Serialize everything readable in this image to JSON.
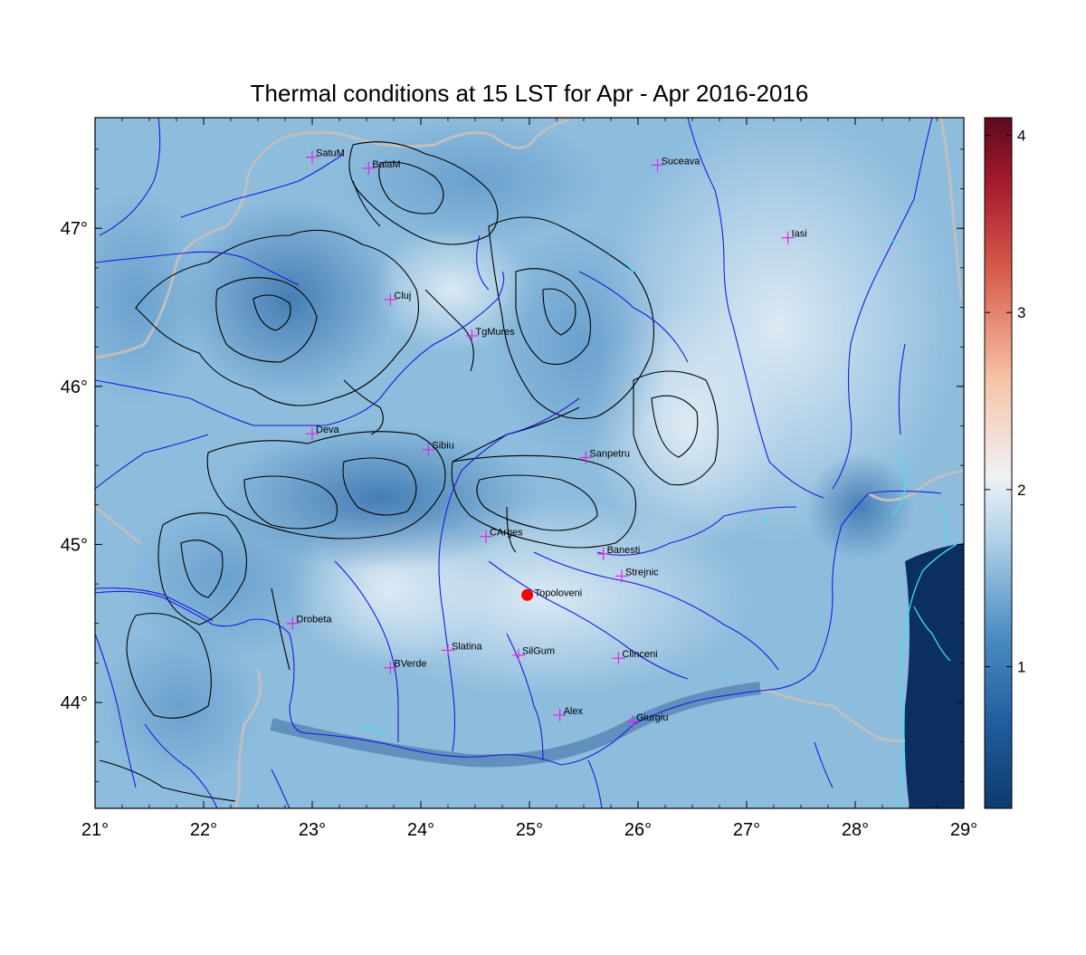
{
  "title": "Thermal conditions at 15 LST for Apr - Apr  2016-2016",
  "lon_ticks": [
    {
      "value": 21,
      "label": "21°"
    },
    {
      "value": 22,
      "label": "22°"
    },
    {
      "value": 23,
      "label": "23°"
    },
    {
      "value": 24,
      "label": "24°"
    },
    {
      "value": 25,
      "label": "25°"
    },
    {
      "value": 26,
      "label": "26°"
    },
    {
      "value": 27,
      "label": "27°"
    },
    {
      "value": 28,
      "label": "28°"
    },
    {
      "value": 29,
      "label": "29°"
    }
  ],
  "lat_ticks": [
    {
      "value": 44,
      "label": "44°"
    },
    {
      "value": 45,
      "label": "45°"
    },
    {
      "value": 46,
      "label": "46°"
    },
    {
      "value": 47,
      "label": "47°"
    }
  ],
  "lon_range": [
    21,
    29
  ],
  "lat_range": [
    43.33,
    47.7
  ],
  "colorbar": {
    "range": [
      0.2,
      4.1
    ],
    "ticks": [
      {
        "value": 1,
        "label": "1"
      },
      {
        "value": 2,
        "label": "2"
      },
      {
        "value": 3,
        "label": "3"
      },
      {
        "value": 4,
        "label": "4"
      }
    ],
    "colors": [
      "#0e3a6e",
      "#2f6fae",
      "#6ba7d2",
      "#b3d3e8",
      "#f2f4f6",
      "#f2b899",
      "#d25a4a",
      "#6a0d20"
    ]
  },
  "stations": [
    {
      "name": "SatuM",
      "lon": 23.0,
      "lat": 47.45
    },
    {
      "name": "BaiaM",
      "lon": 23.52,
      "lat": 47.38
    },
    {
      "name": "Suceava",
      "lon": 26.18,
      "lat": 47.4
    },
    {
      "name": "Iasi",
      "lon": 27.38,
      "lat": 46.94
    },
    {
      "name": "Cluj",
      "lon": 23.72,
      "lat": 46.55
    },
    {
      "name": "TgMures",
      "lon": 24.47,
      "lat": 46.32
    },
    {
      "name": "Deva",
      "lon": 23.0,
      "lat": 45.7
    },
    {
      "name": "Sibiu",
      "lon": 24.07,
      "lat": 45.6
    },
    {
      "name": "Sanpetru",
      "lon": 25.52,
      "lat": 45.55
    },
    {
      "name": "CArges",
      "lon": 24.6,
      "lat": 45.05
    },
    {
      "name": "Banesti",
      "lon": 25.68,
      "lat": 44.94
    },
    {
      "name": "Strejnic",
      "lon": 25.85,
      "lat": 44.8
    },
    {
      "name": "Drobeta",
      "lon": 22.82,
      "lat": 44.5
    },
    {
      "name": "Slatina",
      "lon": 24.25,
      "lat": 44.33
    },
    {
      "name": "SilGum",
      "lon": 24.9,
      "lat": 44.3
    },
    {
      "name": "Clinceni",
      "lon": 25.82,
      "lat": 44.28
    },
    {
      "name": "BVerde",
      "lon": 23.72,
      "lat": 44.22
    },
    {
      "name": "Alex",
      "lon": 25.28,
      "lat": 43.92
    },
    {
      "name": "Giurgiu",
      "lon": 25.95,
      "lat": 43.88
    }
  ],
  "highlight": {
    "name": "Topoloveni",
    "lon": 24.98,
    "lat": 44.68,
    "color": "#ff0000"
  },
  "colors": {
    "station_marker": "#e026e6",
    "rivers": "#1a1adf",
    "contours": "#000000",
    "borders": "#bfbfbf",
    "coast": "#3fe0f0",
    "sea": "#0a2f60"
  }
}
